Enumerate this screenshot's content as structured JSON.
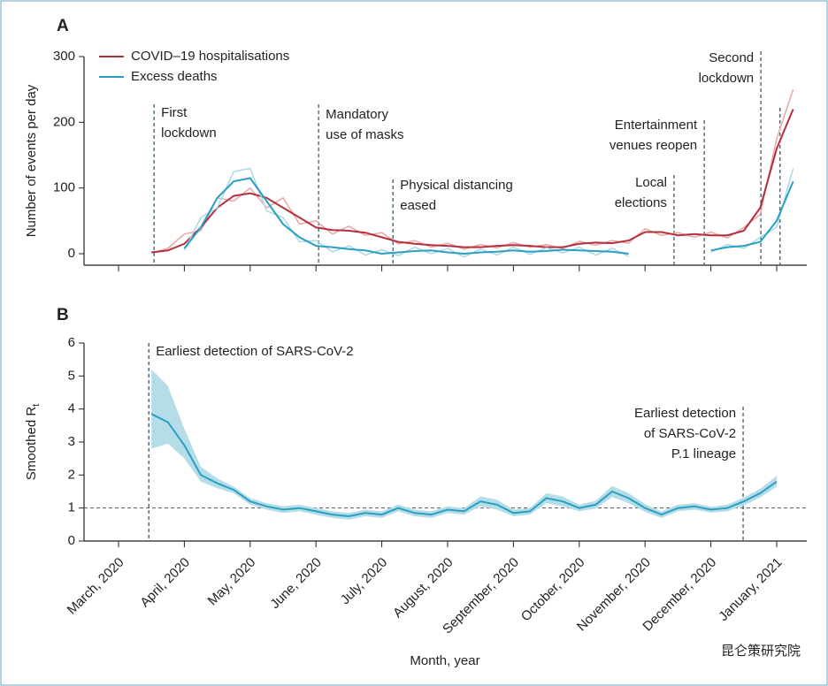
{
  "chart_data": [
    {
      "type": "line",
      "panel": "A",
      "y_label": "Number of events per day",
      "xlim": [
        -0.524,
        10.457
      ],
      "xticks": [
        0,
        1,
        2,
        3,
        4,
        5,
        6,
        7,
        8,
        9,
        10
      ],
      "ylim": [
        -17.5,
        300
      ],
      "yticks": [
        0,
        100,
        200,
        300
      ],
      "legend": "top-left",
      "x": [
        0.5,
        0.75,
        1.0,
        1.25,
        1.5,
        1.75,
        2.0,
        2.25,
        2.5,
        2.75,
        3.0,
        3.25,
        3.5,
        3.75,
        4.0,
        4.25,
        4.5,
        4.75,
        5.0,
        5.25,
        5.5,
        5.75,
        6.0,
        6.25,
        6.5,
        6.75,
        7.0,
        7.25,
        7.5,
        7.75,
        8.0,
        8.25,
        8.5,
        8.75,
        9.0,
        9.25,
        9.5,
        9.75,
        10.0,
        10.25
      ],
      "series": [
        {
          "name": "COVID–19 hospitalisations",
          "color": "#b5303f",
          "raw_color": "#e8a6a6",
          "values": [
            2,
            5,
            15,
            40,
            70,
            88,
            92,
            85,
            70,
            55,
            40,
            36,
            35,
            32,
            25,
            18,
            15,
            13,
            12,
            10,
            10,
            12,
            13,
            12,
            10,
            10,
            15,
            17,
            16,
            20,
            33,
            33,
            28,
            30,
            28,
            28,
            35,
            70,
            160,
            220
          ],
          "raw_values": [
            1,
            8,
            30,
            35,
            85,
            80,
            100,
            70,
            85,
            45,
            50,
            30,
            42,
            28,
            32,
            15,
            20,
            10,
            16,
            7,
            14,
            9,
            17,
            10,
            14,
            8,
            19,
            13,
            20,
            16,
            38,
            28,
            32,
            25,
            33,
            24,
            40,
            60,
            175,
            250
          ]
        },
        {
          "name": "Excess deaths",
          "color": "#2b9fc1",
          "raw_color": "#a9d9e6",
          "values": [
            null,
            null,
            8,
            40,
            85,
            110,
            115,
            80,
            45,
            25,
            12,
            10,
            7,
            5,
            0,
            2,
            4,
            5,
            2,
            0,
            2,
            3,
            5,
            3,
            4,
            6,
            5,
            4,
            3,
            0,
            null,
            null,
            null,
            null,
            5,
            10,
            12,
            18,
            50,
            110
          ],
          "raw_values": [
            null,
            null,
            5,
            55,
            70,
            125,
            130,
            65,
            55,
            18,
            20,
            3,
            12,
            -2,
            6,
            -3,
            10,
            0,
            8,
            -5,
            7,
            -2,
            10,
            -1,
            9,
            1,
            10,
            -2,
            8,
            -4,
            null,
            null,
            null,
            null,
            2,
            14,
            8,
            25,
            40,
            130
          ]
        }
      ],
      "annotations": [
        {
          "x": 0.54,
          "label": [
            "First",
            "lockdown"
          ]
        },
        {
          "x": 3.04,
          "label": [
            "Mandatory",
            "use of masks"
          ]
        },
        {
          "x": 4.17,
          "label": [
            "Physical distancing",
            "eased"
          ]
        },
        {
          "x": 8.44,
          "label": [
            "Local",
            "elections"
          ]
        },
        {
          "x": 8.9,
          "label": [
            "Entertainment",
            "venues reopen"
          ]
        },
        {
          "x": 9.76,
          "label": [
            "Second",
            "lockdown"
          ]
        },
        {
          "x": 10.05
        }
      ]
    },
    {
      "type": "line",
      "panel": "B",
      "y_label": "Smoothed R",
      "y_label_sub": "t",
      "xlim": [
        -0.524,
        10.457
      ],
      "xticks": [
        {
          "value": 0,
          "label": "March, 2020"
        },
        {
          "value": 1,
          "label": "April, 2020"
        },
        {
          "value": 2,
          "label": "May, 2020"
        },
        {
          "value": 3,
          "label": "June, 2020"
        },
        {
          "value": 4,
          "label": "July, 2020"
        },
        {
          "value": 5,
          "label": "August, 2020"
        },
        {
          "value": 6,
          "label": "September, 2020"
        },
        {
          "value": 7,
          "label": "October, 2020"
        },
        {
          "value": 8,
          "label": "November, 2020"
        },
        {
          "value": 9,
          "label": "December, 2020"
        },
        {
          "value": 10,
          "label": "January, 2021"
        }
      ],
      "x_label": "Month, year",
      "ylim": [
        0,
        6
      ],
      "yticks": [
        0,
        1,
        2,
        3,
        4,
        5,
        6
      ],
      "hline": 1,
      "x": [
        0.5,
        0.75,
        1.0,
        1.25,
        1.5,
        1.75,
        2.0,
        2.25,
        2.5,
        2.75,
        3.0,
        3.25,
        3.5,
        3.75,
        4.0,
        4.25,
        4.5,
        4.75,
        5.0,
        5.25,
        5.5,
        5.75,
        6.0,
        6.25,
        6.5,
        6.75,
        7.0,
        7.25,
        7.5,
        7.75,
        8.0,
        8.25,
        8.5,
        8.75,
        9.0,
        9.25,
        9.5,
        9.75,
        10.0
      ],
      "series": [
        {
          "color": "#2b9fc1",
          "band_color": "#b4dde8",
          "values": [
            3.85,
            3.6,
            2.9,
            2.0,
            1.75,
            1.55,
            1.2,
            1.05,
            0.95,
            1.0,
            0.9,
            0.8,
            0.75,
            0.85,
            0.8,
            1.0,
            0.85,
            0.8,
            0.95,
            0.9,
            1.2,
            1.1,
            0.85,
            0.9,
            1.3,
            1.2,
            1.0,
            1.1,
            1.5,
            1.3,
            1.0,
            0.8,
            1.0,
            1.05,
            0.95,
            1.0,
            1.2,
            1.45,
            1.8
          ],
          "lower": [
            2.8,
            2.95,
            2.5,
            1.8,
            1.6,
            1.45,
            1.1,
            0.95,
            0.85,
            0.9,
            0.8,
            0.7,
            0.65,
            0.75,
            0.7,
            0.9,
            0.75,
            0.7,
            0.85,
            0.8,
            1.05,
            0.95,
            0.75,
            0.8,
            1.15,
            1.05,
            0.9,
            0.98,
            1.33,
            1.15,
            0.88,
            0.7,
            0.9,
            0.95,
            0.86,
            0.9,
            1.08,
            1.32,
            1.65
          ],
          "upper": [
            5.2,
            4.7,
            3.4,
            2.25,
            1.9,
            1.65,
            1.3,
            1.15,
            1.05,
            1.1,
            1.0,
            0.9,
            0.85,
            0.95,
            0.9,
            1.1,
            0.95,
            0.9,
            1.05,
            1.0,
            1.35,
            1.25,
            0.95,
            1.0,
            1.45,
            1.35,
            1.1,
            1.22,
            1.67,
            1.45,
            1.12,
            0.9,
            1.1,
            1.15,
            1.04,
            1.1,
            1.32,
            1.58,
            1.98
          ]
        }
      ],
      "annotations": [
        {
          "x": 0.46,
          "label": [
            "Earliest detection of SARS-CoV-2"
          ]
        },
        {
          "x": 9.49,
          "label": [
            "Earliest detection",
            "of SARS-CoV-2",
            "P.1 lineage"
          ]
        }
      ]
    }
  ],
  "watermark": "昆仑策研究院"
}
